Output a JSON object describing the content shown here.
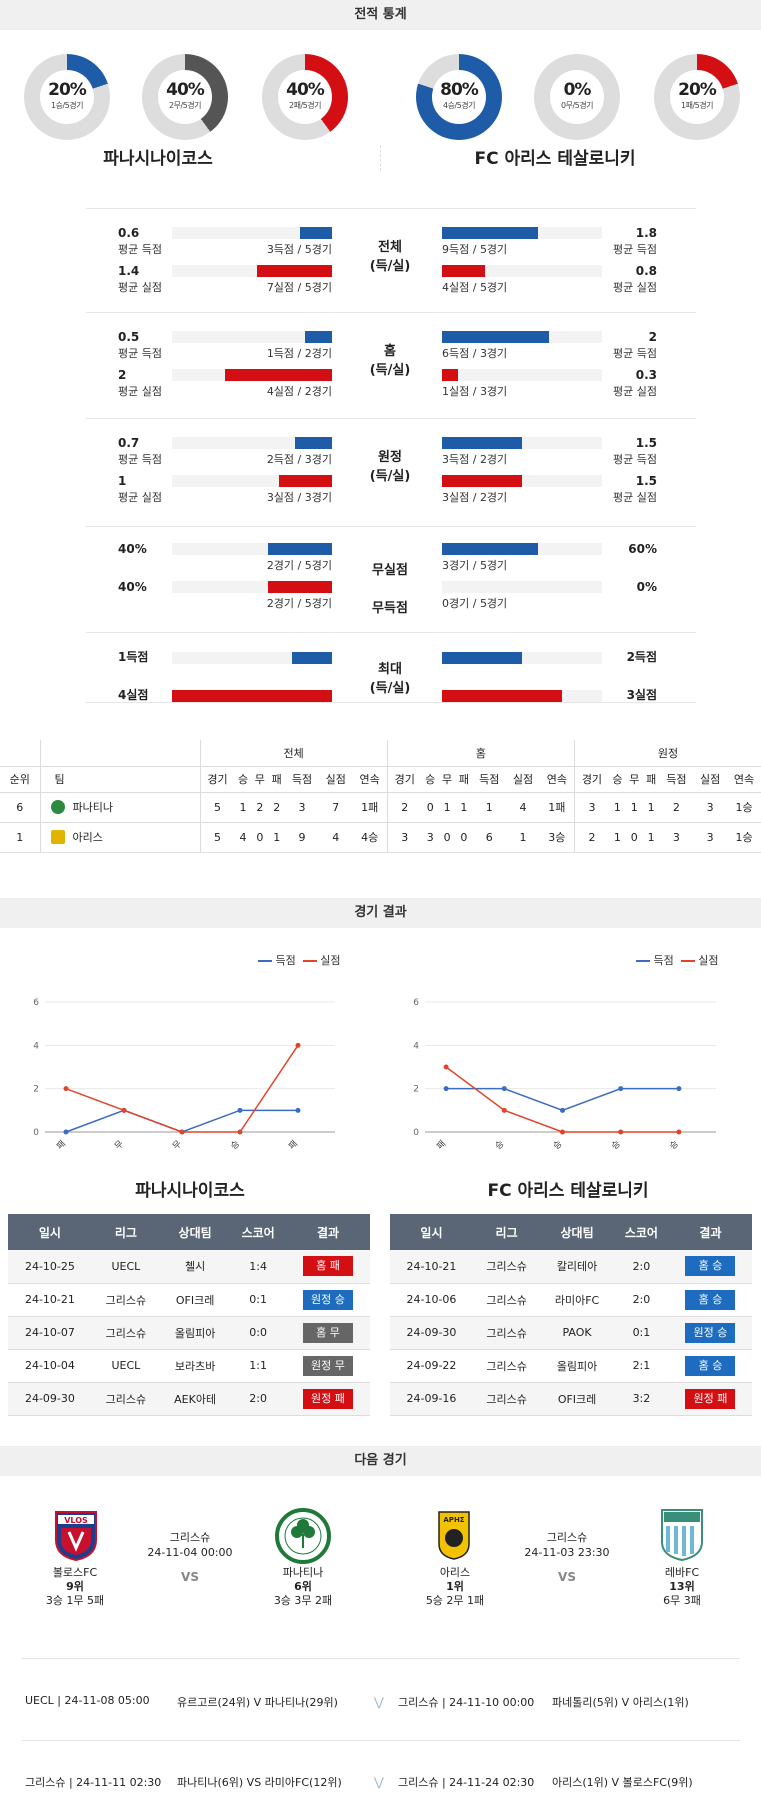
{
  "sections": {
    "record": "전적 통계",
    "results": "경기 결과",
    "next": "다음 경기"
  },
  "colors": {
    "blue": "#1e5ca8",
    "red": "#d40f14",
    "gray": "#555555",
    "track": "#dddddd"
  },
  "donuts": [
    {
      "pct": "20%",
      "sub": "1승/5경기",
      "color": "#1e5ca8",
      "value": 0.2
    },
    {
      "pct": "40%",
      "sub": "2무/5경기",
      "color": "#555555",
      "value": 0.4
    },
    {
      "pct": "40%",
      "sub": "2패/5경기",
      "color": "#d40f14",
      "value": 0.4
    },
    {
      "pct": "80%",
      "sub": "4승/5경기",
      "color": "#1e5ca8",
      "value": 0.8
    },
    {
      "pct": "0%",
      "sub": "0무/5경기",
      "color": "#555555",
      "value": 0.0
    },
    {
      "pct": "20%",
      "sub": "1패/5경기",
      "color": "#d40f14",
      "value": 0.2
    }
  ],
  "teams": {
    "home": "파나시나이코스",
    "away": "FC 아리스 테살로니키"
  },
  "stats": [
    {
      "center": [
        "전체",
        "(득/실)"
      ],
      "rows": [
        {
          "lv": "0.6",
          "ll": "평균 득점",
          "lc": "3득점 / 5경기",
          "lf": 0.2,
          "lcol": "blue",
          "rv": "1.8",
          "rl": "평균 득점",
          "rc": "9득점 / 5경기",
          "rf": 0.6,
          "rcol": "blue"
        },
        {
          "lv": "1.4",
          "ll": "평균 실점",
          "lc": "7실점 / 5경기",
          "lf": 0.47,
          "lcol": "red",
          "rv": "0.8",
          "rl": "평균 실점",
          "rc": "4실점 / 5경기",
          "rf": 0.27,
          "rcol": "red"
        }
      ]
    },
    {
      "center": [
        "홈",
        "(득/실)"
      ],
      "rows": [
        {
          "lv": "0.5",
          "ll": "평균 득점",
          "lc": "1득점 / 2경기",
          "lf": 0.17,
          "lcol": "blue",
          "rv": "2",
          "rl": "평균 득점",
          "rc": "6득점 / 3경기",
          "rf": 0.67,
          "rcol": "blue"
        },
        {
          "lv": "2",
          "ll": "평균 실점",
          "lc": "4실점 / 2경기",
          "lf": 0.67,
          "lcol": "red",
          "rv": "0.3",
          "rl": "평균 실점",
          "rc": "1실점 / 3경기",
          "rf": 0.1,
          "rcol": "red"
        }
      ]
    },
    {
      "center": [
        "원정",
        "(득/실)"
      ],
      "rows": [
        {
          "lv": "0.7",
          "ll": "평균 득점",
          "lc": "2득점 / 3경기",
          "lf": 0.23,
          "lcol": "blue",
          "rv": "1.5",
          "rl": "평균 득점",
          "rc": "3득점 / 2경기",
          "rf": 0.5,
          "rcol": "blue"
        },
        {
          "lv": "1",
          "ll": "평균 실점",
          "lc": "3실점 / 3경기",
          "lf": 0.33,
          "lcol": "red",
          "rv": "1.5",
          "rl": "평균 실점",
          "rc": "3실점 / 2경기",
          "rf": 0.5,
          "rcol": "red"
        }
      ]
    },
    {
      "center": [
        "무실점",
        "무득점"
      ],
      "rows": [
        {
          "lv": "40%",
          "ll": "",
          "lc": "2경기 / 5경기",
          "lf": 0.4,
          "lcol": "blue",
          "rv": "60%",
          "rl": "",
          "rc": "3경기 / 5경기",
          "rf": 0.6,
          "rcol": "blue"
        },
        {
          "lv": "40%",
          "ll": "",
          "lc": "2경기 / 5경기",
          "lf": 0.4,
          "lcol": "red",
          "rv": "0%",
          "rl": "",
          "rc": "0경기 / 5경기",
          "rf": 0.0,
          "rcol": "red"
        }
      ]
    },
    {
      "center": [
        "최대",
        "(득/실)"
      ],
      "rows": [
        {
          "lv": "1득점",
          "ll": "",
          "lc": "",
          "lf": 0.25,
          "lcol": "blue",
          "rv": "2득점",
          "rl": "",
          "rc": "",
          "rf": 0.5,
          "rcol": "blue"
        },
        {
          "lv": "4실점",
          "ll": "",
          "lc": "",
          "lf": 1.0,
          "lcol": "red",
          "rv": "3실점",
          "rl": "",
          "rc": "",
          "rf": 0.75,
          "rcol": "red"
        }
      ]
    }
  ],
  "standings": {
    "groups": [
      "전체",
      "홈",
      "원정"
    ],
    "head": [
      "순위",
      "팀"
    ],
    "cols": [
      "경기",
      "승",
      "무",
      "패",
      "득점",
      "실점",
      "연속"
    ],
    "rows": [
      {
        "rank": "6",
        "team": "파나티나",
        "crest": "#2b8a3e",
        "vals": [
          "5",
          "1",
          "2",
          "2",
          "3",
          "7",
          "1패",
          "2",
          "0",
          "1",
          "1",
          "1",
          "4",
          "1패",
          "3",
          "1",
          "1",
          "1",
          "2",
          "3",
          "1승"
        ]
      },
      {
        "rank": "1",
        "team": "아리스",
        "crest": "#e0b400",
        "vals": [
          "5",
          "4",
          "0",
          "1",
          "9",
          "4",
          "4승",
          "3",
          "3",
          "0",
          "0",
          "6",
          "1",
          "3승",
          "2",
          "1",
          "0",
          "1",
          "3",
          "3",
          "1승"
        ]
      }
    ]
  },
  "legend": {
    "score": "득점",
    "concede": "실점"
  },
  "chart_data": [
    {
      "type": "line",
      "title": "",
      "categories": [
        "패",
        "무",
        "무",
        "승",
        "패"
      ],
      "ylim": [
        0,
        6
      ],
      "yticks": [
        "0",
        "2",
        "4",
        "6"
      ],
      "series": [
        {
          "name": "득점",
          "values": [
            0,
            1,
            0,
            1,
            1
          ],
          "color": "#3b6cc0"
        },
        {
          "name": "실점",
          "values": [
            2,
            1,
            0,
            0,
            4
          ],
          "color": "#e0452c"
        }
      ]
    },
    {
      "type": "line",
      "title": "",
      "categories": [
        "패",
        "승",
        "승",
        "승",
        "승"
      ],
      "ylim": [
        0,
        6
      ],
      "yticks": [
        "0",
        "2",
        "4",
        "6"
      ],
      "series": [
        {
          "name": "득점",
          "values": [
            2,
            2,
            1,
            2,
            2
          ],
          "color": "#3b6cc0"
        },
        {
          "name": "실점",
          "values": [
            3,
            1,
            0,
            0,
            0
          ],
          "color": "#e0452c"
        }
      ]
    }
  ],
  "results": {
    "headers": [
      "일시",
      "리그",
      "상대팀",
      "스코어",
      "결과"
    ],
    "home": [
      {
        "date": "24-10-25",
        "league": "UECL",
        "opp": "첼시",
        "score": "1:4",
        "result": "홈 패",
        "cls": "b-red"
      },
      {
        "date": "24-10-21",
        "league": "그리스슈",
        "opp": "OFI크레",
        "score": "0:1",
        "result": "원정 승",
        "cls": "b-blue"
      },
      {
        "date": "24-10-07",
        "league": "그리스슈",
        "opp": "올림피아",
        "score": "0:0",
        "result": "홈 무",
        "cls": "b-gray"
      },
      {
        "date": "24-10-04",
        "league": "UECL",
        "opp": "보라츠바",
        "score": "1:1",
        "result": "원정 무",
        "cls": "b-gray"
      },
      {
        "date": "24-09-30",
        "league": "그리스슈",
        "opp": "AEK아테",
        "score": "2:0",
        "result": "원정 패",
        "cls": "b-red"
      }
    ],
    "away": [
      {
        "date": "24-10-21",
        "league": "그리스슈",
        "opp": "칼리테아",
        "score": "2:0",
        "result": "홈 승",
        "cls": "b-blue"
      },
      {
        "date": "24-10-06",
        "league": "그리스슈",
        "opp": "라미아FC",
        "score": "2:0",
        "result": "홈 승",
        "cls": "b-blue"
      },
      {
        "date": "24-09-30",
        "league": "그리스슈",
        "opp": "PAOK",
        "score": "0:1",
        "result": "원정 승",
        "cls": "b-blue"
      },
      {
        "date": "24-09-22",
        "league": "그리스슈",
        "opp": "올림피아",
        "score": "2:1",
        "result": "홈 승",
        "cls": "b-blue"
      },
      {
        "date": "24-09-16",
        "league": "그리스슈",
        "opp": "OFI크레",
        "score": "3:2",
        "result": "원정 패",
        "cls": "b-red"
      }
    ]
  },
  "next": {
    "left": {
      "league": "그리스슈",
      "time": "24-11-04 00:00",
      "vs": "VS",
      "t1": {
        "name": "볼로스FC",
        "rank": "9위",
        "rec": "3승 1무 5패",
        "logo": "V·LOS"
      },
      "t2": {
        "name": "파나티나",
        "rank": "6위",
        "rec": "3승 3무 2패",
        "logo": ""
      }
    },
    "right": {
      "league": "그리스슈",
      "time": "24-11-03 23:30",
      "vs": "VS",
      "t1": {
        "name": "아리스",
        "rank": "1위",
        "rec": "5승 2무 1패",
        "logo": "ΑΡΗΣ"
      },
      "t2": {
        "name": "레바FC",
        "rank": "13위",
        "rec": "6무 3패",
        "logo": ""
      }
    }
  },
  "upcoming": [
    {
      "info": "UECL | 24-11-08 05:00",
      "teams": "유르고르(24위) V 파나티나(29위)"
    },
    {
      "info": "그리스슈 | 24-11-10 00:00",
      "teams": "파네톨리(5위) V 아리스(1위)"
    },
    {
      "info": "그리스슈 | 24-11-11 02:30",
      "teams": "파나티나(6위) VS 라미아FC(12위)"
    },
    {
      "info": "그리스슈 | 24-11-24 02:30",
      "teams": "아리스(1위) V 볼로스FC(9위)"
    }
  ]
}
